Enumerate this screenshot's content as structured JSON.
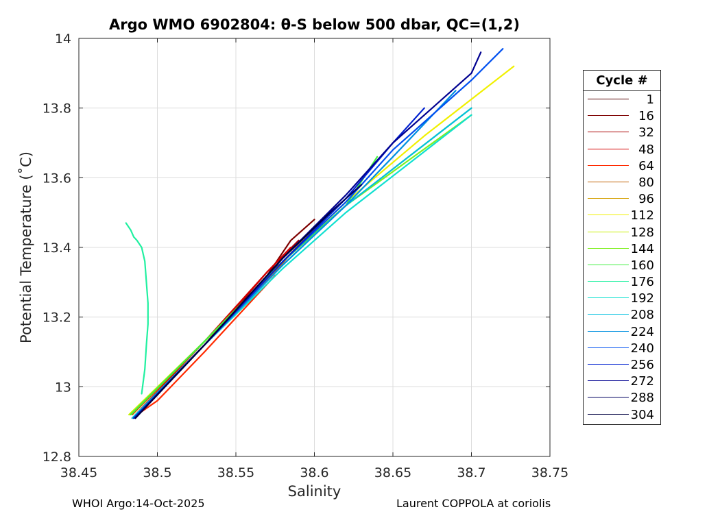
{
  "title": "Argo WMO 6902804: θ-S below 500 dbar,  QC=(1,2)",
  "footer_left": "WHOI Argo:14-Oct-2025",
  "footer_right": "Laurent COPPOLA at coriolis",
  "legend": {
    "title": "Cycle #",
    "items": [
      {
        "label": "1",
        "color": "#550000"
      },
      {
        "label": "16",
        "color": "#7e0000"
      },
      {
        "label": "32",
        "color": "#aa0000"
      },
      {
        "label": "48",
        "color": "#d40000"
      },
      {
        "label": "64",
        "color": "#ff2a00"
      },
      {
        "label": "80",
        "color": "#c06000"
      },
      {
        "label": "96",
        "color": "#d4a000"
      },
      {
        "label": "112",
        "color": "#f0f000"
      },
      {
        "label": "128",
        "color": "#c8f000"
      },
      {
        "label": "144",
        "color": "#80f020"
      },
      {
        "label": "160",
        "color": "#40f040"
      },
      {
        "label": "176",
        "color": "#20f0a0"
      },
      {
        "label": "192",
        "color": "#10e0d0"
      },
      {
        "label": "208",
        "color": "#00c0e0"
      },
      {
        "label": "224",
        "color": "#0090e0"
      },
      {
        "label": "240",
        "color": "#0050f0"
      },
      {
        "label": "256",
        "color": "#0020d0"
      },
      {
        "label": "272",
        "color": "#000090"
      },
      {
        "label": "288",
        "color": "#000060"
      },
      {
        "label": "304",
        "color": "#000040"
      }
    ]
  },
  "chart_data": {
    "type": "line",
    "xlabel": "Salinity",
    "ylabel": "Potential Temperature (˚C)",
    "xlim": [
      38.45,
      38.75
    ],
    "ylim": [
      12.8,
      14.0
    ],
    "xticks": [
      "38.45",
      "38.5",
      "38.55",
      "38.6",
      "38.65",
      "38.7",
      "38.75"
    ],
    "yticks": [
      "12.8",
      "13",
      "13.2",
      "13.4",
      "13.6",
      "13.8",
      "14"
    ],
    "grid": true,
    "legend_position": "outside-right",
    "series": [
      {
        "name": "1",
        "color": "#550000",
        "x": [
          38.485,
          38.53,
          38.57,
          38.59
        ],
        "y": [
          12.91,
          13.12,
          13.32,
          13.4
        ]
      },
      {
        "name": "16",
        "color": "#7e0000",
        "x": [
          38.485,
          38.53,
          38.57,
          38.585,
          38.6
        ],
        "y": [
          12.91,
          13.12,
          13.32,
          13.42,
          13.48
        ]
      },
      {
        "name": "32",
        "color": "#aa0000",
        "x": [
          38.485,
          38.53,
          38.57,
          38.59
        ],
        "y": [
          12.91,
          13.12,
          13.33,
          13.42
        ]
      },
      {
        "name": "48",
        "color": "#d40000",
        "x": [
          38.484,
          38.53,
          38.57,
          38.585
        ],
        "y": [
          12.91,
          13.13,
          13.33,
          13.4
        ]
      },
      {
        "name": "64",
        "color": "#ff2a00",
        "x": [
          38.484,
          38.5,
          38.53,
          38.575
        ],
        "y": [
          12.91,
          12.96,
          13.1,
          13.32
        ]
      },
      {
        "name": "80",
        "color": "#c06000",
        "x": [
          38.484,
          38.53,
          38.575,
          38.6
        ],
        "y": [
          12.92,
          13.13,
          13.33,
          13.46
        ]
      },
      {
        "name": "96",
        "color": "#d4a000",
        "x": [
          38.483,
          38.53,
          38.58,
          38.61
        ],
        "y": [
          12.92,
          13.13,
          13.36,
          13.5
        ]
      },
      {
        "name": "112",
        "color": "#f0f000",
        "x": [
          38.482,
          38.53,
          38.58,
          38.62,
          38.67,
          38.727
        ],
        "y": [
          12.92,
          13.13,
          13.36,
          13.53,
          13.72,
          13.92
        ]
      },
      {
        "name": "128",
        "color": "#c8f000",
        "x": [
          38.482,
          38.53,
          38.58,
          38.62,
          38.66,
          38.7
        ],
        "y": [
          12.92,
          13.13,
          13.36,
          13.52,
          13.66,
          13.8
        ]
      },
      {
        "name": "144",
        "color": "#80f020",
        "x": [
          38.483,
          38.53,
          38.58,
          38.62,
          38.66,
          38.7
        ],
        "y": [
          12.92,
          13.13,
          13.36,
          13.52,
          13.65,
          13.78
        ]
      },
      {
        "name": "160",
        "color": "#40f040",
        "x": [
          38.483,
          38.53,
          38.58,
          38.62,
          38.64
        ],
        "y": [
          12.92,
          13.13,
          13.36,
          13.52,
          13.66
        ]
      },
      {
        "name": "176",
        "color": "#20f0a0",
        "x": [
          38.49,
          38.492,
          38.493,
          38.494,
          38.494,
          38.493,
          38.492,
          38.49,
          38.487,
          38.485,
          38.483,
          38.48
        ],
        "y": [
          12.98,
          13.05,
          13.12,
          13.18,
          13.24,
          13.3,
          13.36,
          13.4,
          13.42,
          13.43,
          13.45,
          13.47
        ]
      },
      {
        "name": "192",
        "color": "#10e0d0",
        "x": [
          38.484,
          38.53,
          38.58,
          38.62,
          38.66,
          38.7
        ],
        "y": [
          12.91,
          13.12,
          13.34,
          13.5,
          13.64,
          13.78
        ]
      },
      {
        "name": "208",
        "color": "#00c0e0",
        "x": [
          38.484,
          38.53,
          38.58,
          38.62,
          38.66,
          38.7
        ],
        "y": [
          12.91,
          13.12,
          13.35,
          13.52,
          13.66,
          13.8
        ]
      },
      {
        "name": "224",
        "color": "#0090e0",
        "x": [
          38.485,
          38.53,
          38.58,
          38.62,
          38.65,
          38.69
        ],
        "y": [
          12.91,
          13.12,
          13.35,
          13.52,
          13.66,
          13.85
        ]
      },
      {
        "name": "240",
        "color": "#0050f0",
        "x": [
          38.485,
          38.53,
          38.58,
          38.62,
          38.65,
          38.7,
          38.72
        ],
        "y": [
          12.91,
          13.12,
          13.36,
          13.53,
          13.68,
          13.88,
          13.97
        ]
      },
      {
        "name": "256",
        "color": "#0020d0",
        "x": [
          38.485,
          38.53,
          38.58,
          38.62,
          38.65,
          38.67
        ],
        "y": [
          12.91,
          13.12,
          13.36,
          13.54,
          13.7,
          13.8
        ]
      },
      {
        "name": "272",
        "color": "#000090",
        "x": [
          38.486,
          38.53,
          38.58,
          38.62,
          38.65,
          38.7,
          38.706
        ],
        "y": [
          12.91,
          13.12,
          13.37,
          13.55,
          13.7,
          13.9,
          13.96
        ]
      },
      {
        "name": "288",
        "color": "#000060",
        "x": [
          38.486,
          38.53,
          38.58,
          38.61,
          38.63
        ],
        "y": [
          12.91,
          13.12,
          13.37,
          13.5,
          13.58
        ]
      },
      {
        "name": "304",
        "color": "#000040",
        "x": [
          38.486,
          38.53,
          38.58,
          38.61
        ],
        "y": [
          12.91,
          13.12,
          13.37,
          13.5
        ]
      }
    ]
  }
}
